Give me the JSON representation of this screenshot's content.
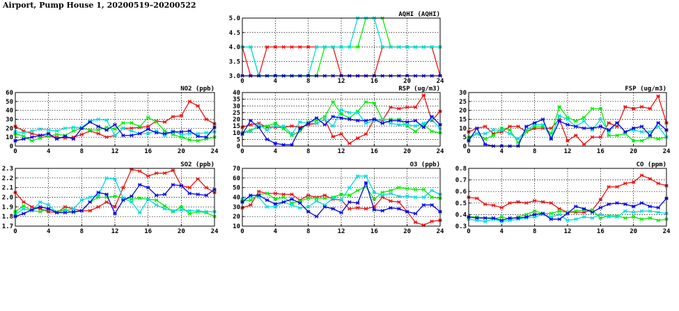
{
  "page": {
    "title": "Airport, Pump House 1, 20200519–20200522"
  },
  "colors": {
    "series": [
      "#ee1111",
      "#00ee00",
      "#00dddd",
      "#0000ee"
    ],
    "grid": "#000000",
    "frame": "#000000"
  },
  "chart_data": [
    {
      "id": "aqhi",
      "type": "line",
      "title": "AQHI (AQHI)",
      "xlim": [
        0,
        24
      ],
      "ylim": [
        3,
        5
      ],
      "xticks": [
        0,
        4,
        8,
        12,
        16,
        20,
        24
      ],
      "yticks": [
        3.0,
        3.5,
        4.0,
        4.5,
        5.0
      ],
      "ytick_labels": [
        "3.0",
        "3.5",
        "4.0",
        "4.5",
        "5.0"
      ],
      "series": [
        {
          "values": [
            4,
            3,
            3,
            4,
            4,
            4,
            4,
            4,
            4,
            4,
            4,
            4,
            3,
            3,
            3,
            3,
            3,
            4,
            4,
            4,
            4,
            4,
            4,
            4,
            3
          ]
        },
        {
          "values": [
            4,
            4,
            3,
            3,
            3,
            3,
            3,
            3,
            3,
            3,
            4,
            4,
            4,
            4,
            4,
            5,
            5,
            5,
            4,
            4,
            4,
            4,
            4,
            4,
            4
          ]
        },
        {
          "values": [
            4,
            4,
            3,
            3,
            3,
            3,
            3,
            3,
            3,
            4,
            4,
            4,
            4,
            4,
            5,
            5,
            5,
            4,
            4,
            4,
            4,
            4,
            4,
            4,
            4
          ]
        },
        {
          "values": [
            3,
            3,
            3,
            3,
            3,
            3,
            3,
            3,
            3,
            3,
            3,
            3,
            3,
            3,
            3,
            3,
            3,
            3,
            3,
            3,
            3,
            3,
            3,
            3,
            3
          ]
        }
      ]
    },
    {
      "id": "no2",
      "type": "line",
      "title": "NO2 (ppb)",
      "xlim": [
        0,
        24
      ],
      "ylim": [
        0,
        60
      ],
      "xticks": [
        0,
        4,
        8,
        12,
        16,
        20,
        24
      ],
      "yticks": [
        0,
        10,
        20,
        30,
        40,
        50,
        60
      ],
      "ytick_labels": [
        "0",
        "10",
        "20",
        "30",
        "40",
        "50",
        "60"
      ],
      "series": [
        {
          "values": [
            22,
            17,
            14,
            12,
            11,
            10,
            9,
            10,
            13,
            17,
            14,
            10,
            12,
            20,
            20,
            21,
            22,
            28,
            27,
            33,
            34,
            50,
            45,
            30,
            25
          ]
        },
        {
          "values": [
            14,
            11,
            6,
            9,
            11,
            13,
            12,
            17,
            20,
            18,
            18,
            21,
            19,
            26,
            26,
            22,
            32,
            27,
            17,
            13,
            10,
            7,
            6,
            8,
            10
          ]
        },
        {
          "values": [
            16,
            15,
            17,
            19,
            18,
            17,
            20,
            21,
            21,
            28,
            30,
            29,
            12,
            20,
            17,
            14,
            14,
            17,
            12,
            17,
            13,
            14,
            14,
            15,
            16
          ]
        },
        {
          "values": [
            6,
            8,
            10,
            12,
            14,
            8,
            11,
            8,
            20,
            27,
            22,
            18,
            24,
            12,
            12,
            14,
            19,
            15,
            14,
            16,
            16,
            17,
            11,
            10,
            21
          ]
        }
      ]
    },
    {
      "id": "rsp",
      "type": "line",
      "title": "RSP (ug/m3)",
      "xlim": [
        0,
        24
      ],
      "ylim": [
        0,
        40
      ],
      "xticks": [
        0,
        4,
        8,
        12,
        16,
        20,
        24
      ],
      "yticks": [
        0,
        5,
        10,
        15,
        20,
        25,
        30,
        35,
        40
      ],
      "ytick_labels": [
        "0",
        "5",
        "10",
        "15",
        "20",
        "25",
        "30",
        "35",
        "40"
      ],
      "series": [
        {
          "values": [
            14,
            16,
            17,
            14,
            14,
            14,
            15,
            14,
            16,
            17,
            20,
            7,
            9,
            2,
            6,
            9,
            20,
            19,
            29,
            28,
            29,
            29,
            38,
            19,
            26
          ]
        },
        {
          "values": [
            10,
            12,
            14,
            15,
            17,
            13,
            8,
            11,
            18,
            19,
            22,
            33,
            24,
            21,
            26,
            33,
            32,
            20,
            20,
            20,
            15,
            11,
            16,
            11,
            10
          ]
        },
        {
          "values": [
            10,
            11,
            16,
            12,
            15,
            15,
            9,
            18,
            17,
            17,
            20,
            15,
            27,
            25,
            25,
            17,
            19,
            20,
            17,
            16,
            16,
            15,
            17,
            20,
            13
          ]
        },
        {
          "values": [
            9,
            19,
            14,
            5,
            2,
            1,
            1,
            13,
            17,
            21,
            16,
            22,
            21,
            20,
            19,
            19,
            20,
            17,
            19,
            19,
            18,
            19,
            14,
            22,
            16
          ]
        }
      ]
    },
    {
      "id": "fsp",
      "type": "line",
      "title": "FSP (ug/m3)",
      "xlim": [
        0,
        24
      ],
      "ylim": [
        0,
        30
      ],
      "xticks": [
        0,
        4,
        8,
        12,
        16,
        20,
        24
      ],
      "yticks": [
        0,
        5,
        10,
        15,
        20,
        25,
        30
      ],
      "ytick_labels": [
        "0",
        "5",
        "10",
        "15",
        "20",
        "25",
        "30"
      ],
      "series": [
        {
          "values": [
            8,
            10,
            11,
            7,
            8,
            11,
            11,
            8,
            10,
            10,
            10,
            15,
            3,
            6,
            1,
            5,
            5,
            13,
            11,
            22,
            21,
            22,
            21,
            28,
            13
          ]
        },
        {
          "values": [
            5,
            7,
            4,
            6,
            10,
            9,
            2,
            8,
            11,
            11,
            7,
            22,
            16,
            14,
            16,
            21,
            21,
            6,
            6,
            7,
            3,
            3,
            5,
            4,
            5
          ]
        },
        {
          "values": [
            4,
            7,
            7,
            9,
            9,
            7,
            4,
            9,
            12,
            12,
            5,
            17,
            15,
            11,
            14,
            9,
            15,
            8,
            13,
            8,
            9,
            8,
            8,
            11,
            5
          ]
        },
        {
          "values": [
            3,
            10,
            1,
            0,
            0,
            0,
            0,
            11,
            13,
            15,
            4,
            14,
            12,
            11,
            10,
            10,
            11,
            9,
            13,
            8,
            10,
            11,
            6,
            13,
            9
          ]
        }
      ]
    },
    {
      "id": "so2",
      "type": "line",
      "title": "SO2 (ppb)",
      "xlim": [
        0,
        24
      ],
      "ylim": [
        1.7,
        2.3
      ],
      "xticks": [
        0,
        4,
        8,
        12,
        16,
        20,
        24
      ],
      "yticks": [
        1.7,
        1.8,
        1.9,
        2.0,
        2.1,
        2.2,
        2.3
      ],
      "ytick_labels": [
        "1.7",
        "1.8",
        "1.9",
        "2.0",
        "2.1",
        "2.2",
        "2.3"
      ],
      "series": [
        {
          "values": [
            2.05,
            1.95,
            1.9,
            1.88,
            1.85,
            1.84,
            1.9,
            1.88,
            1.86,
            1.86,
            1.9,
            1.95,
            1.9,
            2.1,
            2.29,
            2.27,
            2.22,
            2.25,
            2.25,
            2.28,
            2.12,
            2.1,
            2.19,
            2.1,
            2.05
          ]
        },
        {
          "values": [
            1.85,
            1.91,
            1.86,
            1.85,
            1.88,
            1.85,
            1.87,
            1.84,
            1.86,
            1.95,
            2.0,
            2.0,
            2.01,
            1.99,
            1.98,
            1.99,
            1.98,
            1.97,
            1.91,
            1.85,
            1.9,
            1.83,
            1.85,
            1.84,
            1.8
          ]
        },
        {
          "values": [
            1.82,
            1.88,
            1.86,
            1.95,
            1.92,
            1.84,
            1.86,
            1.88,
            1.97,
            2.0,
            2.02,
            2.2,
            2.19,
            1.99,
            1.95,
            1.84,
            1.98,
            1.92,
            1.88,
            1.86,
            1.87,
            1.86,
            1.86,
            1.85,
            1.85
          ]
        },
        {
          "values": [
            1.8,
            1.83,
            1.87,
            1.9,
            1.88,
            1.84,
            1.84,
            1.85,
            1.86,
            1.95,
            2.05,
            2.03,
            1.83,
            1.97,
            2.01,
            2.13,
            2.1,
            2.02,
            2.03,
            2.13,
            2.12,
            2.04,
            2.03,
            2.02,
            2.08
          ]
        }
      ]
    },
    {
      "id": "o3",
      "type": "line",
      "title": "O3 (ppb)",
      "xlim": [
        0,
        24
      ],
      "ylim": [
        10,
        70
      ],
      "xticks": [
        0,
        4,
        8,
        12,
        16,
        20,
        24
      ],
      "yticks": [
        10,
        20,
        30,
        40,
        50,
        60,
        70
      ],
      "ytick_labels": [
        "10",
        "20",
        "30",
        "40",
        "50",
        "60",
        "70"
      ],
      "series": [
        {
          "values": [
            29,
            32,
            46,
            44,
            44,
            43,
            43,
            37,
            42,
            40,
            42,
            38,
            37,
            28,
            29,
            28,
            30,
            40,
            36,
            35,
            25,
            14,
            11,
            15,
            16
          ]
        },
        {
          "values": [
            36,
            37,
            43,
            44,
            38,
            40,
            34,
            36,
            39,
            39,
            39,
            40,
            43,
            42,
            47,
            51,
            38,
            45,
            47,
            50,
            49,
            48,
            48,
            40,
            39
          ]
        },
        {
          "values": [
            38,
            40,
            40,
            30,
            30,
            35,
            32,
            29,
            30,
            36,
            32,
            39,
            37,
            50,
            62,
            62,
            45,
            42,
            44,
            41,
            41,
            40,
            40,
            47,
            43
          ]
        },
        {
          "values": [
            35,
            42,
            42,
            37,
            33,
            35,
            38,
            34,
            25,
            20,
            30,
            28,
            24,
            35,
            34,
            55,
            27,
            26,
            29,
            28,
            25,
            23,
            32,
            32,
            25
          ]
        }
      ]
    },
    {
      "id": "co",
      "type": "line",
      "title": "CO (ppm)",
      "xlim": [
        0,
        24
      ],
      "ylim": [
        0.3,
        0.8
      ],
      "xticks": [
        0,
        4,
        8,
        12,
        16,
        20,
        24
      ],
      "yticks": [
        0.3,
        0.4,
        0.5,
        0.6,
        0.7,
        0.8
      ],
      "ytick_labels": [
        "0.3",
        "0.4",
        "0.5",
        "0.6",
        "0.7",
        "0.8"
      ],
      "series": [
        {
          "values": [
            0.55,
            0.54,
            0.49,
            0.48,
            0.46,
            0.5,
            0.51,
            0.5,
            0.52,
            0.51,
            0.5,
            0.45,
            0.42,
            0.42,
            0.42,
            0.44,
            0.53,
            0.64,
            0.64,
            0.67,
            0.68,
            0.74,
            0.71,
            0.67,
            0.65
          ]
        },
        {
          "values": [
            0.38,
            0.38,
            0.37,
            0.36,
            0.38,
            0.36,
            0.38,
            0.4,
            0.43,
            0.41,
            0.41,
            0.43,
            0.42,
            0.43,
            0.44,
            0.44,
            0.37,
            0.39,
            0.39,
            0.37,
            0.38,
            0.36,
            0.37,
            0.35,
            0.36
          ]
        },
        {
          "values": [
            0.36,
            0.35,
            0.34,
            0.36,
            0.34,
            0.35,
            0.36,
            0.37,
            0.38,
            0.4,
            0.38,
            0.4,
            0.35,
            0.36,
            0.38,
            0.37,
            0.4,
            0.38,
            0.38,
            0.43,
            0.42,
            0.43,
            0.43,
            0.42,
            0.41
          ]
        },
        {
          "values": [
            0.38,
            0.37,
            0.37,
            0.37,
            0.35,
            0.37,
            0.37,
            0.38,
            0.4,
            0.41,
            0.36,
            0.36,
            0.41,
            0.47,
            0.45,
            0.42,
            0.46,
            0.49,
            0.5,
            0.49,
            0.47,
            0.5,
            0.47,
            0.46,
            0.54
          ]
        }
      ]
    }
  ]
}
